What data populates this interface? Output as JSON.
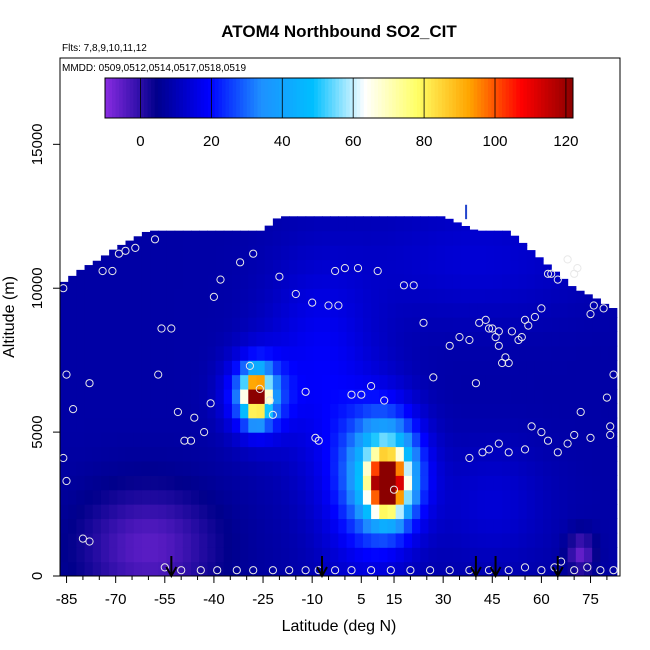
{
  "chart_data": {
    "type": "heatmap",
    "title": "ATOM4 Northbound SO2_CIT",
    "flights_label": "Flts: 7,8,9,10,11,12",
    "mmdd_label": "MMDD: 0509,0512,0514,0517,0518,0519",
    "xlabel": "Latitude (deg N)",
    "ylabel": "Altitude (m)",
    "xlim": [
      -87,
      84
    ],
    "ylim": [
      0,
      18000
    ],
    "x_ticks": [
      -85,
      -70,
      -55,
      -40,
      -25,
      -10,
      5,
      15,
      30,
      45,
      60,
      75
    ],
    "y_ticks": [
      0,
      5000,
      10000,
      15000
    ],
    "colorbar": {
      "range": [
        -10,
        122
      ],
      "ticks": [
        0,
        20,
        40,
        60,
        80,
        100,
        120
      ],
      "colors": [
        "#8a2be2",
        "#00008b",
        "#0000ff",
        "#1e90ff",
        "#00bfff",
        "#ffffff",
        "#ffff66",
        "#ffa500",
        "#ff0000",
        "#8b0000"
      ]
    },
    "data_ceiling": [
      [
        -86,
        10200
      ],
      [
        -80,
        10700
      ],
      [
        -75,
        11000
      ],
      [
        -70,
        11400
      ],
      [
        -60,
        12000
      ],
      [
        -40,
        12000
      ],
      [
        -25,
        12000
      ],
      [
        -20,
        12500
      ],
      [
        30,
        12500
      ],
      [
        40,
        12000
      ],
      [
        50,
        12000
      ],
      [
        55,
        11500
      ],
      [
        60,
        11000
      ],
      [
        65,
        10500
      ],
      [
        70,
        10000
      ],
      [
        76,
        9700
      ],
      [
        80,
        9400
      ],
      [
        82,
        9300
      ]
    ],
    "background_level": 8,
    "plumes": [
      {
        "lat": 13,
        "alt": 3200,
        "sx": 3.5,
        "sy": 650,
        "value": 108
      },
      {
        "lat": 13,
        "alt": 3600,
        "sx": 7,
        "sy": 1300,
        "value": 55
      },
      {
        "lat": 6,
        "alt": 3000,
        "sx": 10,
        "sy": 2200,
        "value": 22
      },
      {
        "lat": -8,
        "alt": 7500,
        "sx": 12,
        "sy": 2500,
        "value": 18
      },
      {
        "lat": -27,
        "alt": 6300,
        "sx": 2.5,
        "sy": 500,
        "value": 100
      },
      {
        "lat": -27,
        "alt": 6300,
        "sx": 6,
        "sy": 900,
        "value": 40
      },
      {
        "lat": 45,
        "alt": 2500,
        "sx": 12,
        "sy": 1500,
        "value": 14
      },
      {
        "lat": 72,
        "alt": 800,
        "sx": 3,
        "sy": 500,
        "value": -6
      },
      {
        "lat": -60,
        "alt": 1000,
        "sx": 15,
        "sy": 1500,
        "value": -5
      },
      {
        "lat": 40,
        "alt": 11000,
        "sx": 25,
        "sy": 1500,
        "value": 14
      }
    ],
    "observation_points": [
      [
        -86,
        10000
      ],
      [
        -85,
        7000
      ],
      [
        -83,
        5800
      ],
      [
        -78,
        6700
      ],
      [
        -74,
        10600
      ],
      [
        -71,
        10600
      ],
      [
        -69,
        11200
      ],
      [
        -67,
        11300
      ],
      [
        -64,
        11400
      ],
      [
        -58,
        11700
      ],
      [
        -57,
        7000
      ],
      [
        -56,
        8600
      ],
      [
        -53,
        8600
      ],
      [
        -51,
        5700
      ],
      [
        -49,
        4700
      ],
      [
        -47,
        4700
      ],
      [
        -46,
        5500
      ],
      [
        -43,
        5000
      ],
      [
        -41,
        6000
      ],
      [
        -40,
        9700
      ],
      [
        -38,
        10300
      ],
      [
        -32,
        10900
      ],
      [
        -28,
        11200
      ],
      [
        -29,
        7300
      ],
      [
        -26,
        6500
      ],
      [
        -23,
        6100
      ],
      [
        -22,
        5600
      ],
      [
        -20,
        10400
      ],
      [
        -15,
        9800
      ],
      [
        -12,
        6400
      ],
      [
        -10,
        9500
      ],
      [
        -9,
        4800
      ],
      [
        -8,
        4700
      ],
      [
        -5,
        9400
      ],
      [
        -3,
        10600
      ],
      [
        -2,
        9400
      ],
      [
        0,
        10700
      ],
      [
        2,
        6300
      ],
      [
        4,
        10700
      ],
      [
        5,
        6300
      ],
      [
        8,
        6600
      ],
      [
        10,
        10600
      ],
      [
        12,
        6100
      ],
      [
        15,
        3000
      ],
      [
        18,
        10100
      ],
      [
        21,
        10100
      ],
      [
        24,
        8800
      ],
      [
        27,
        6900
      ],
      [
        32,
        8000
      ],
      [
        35,
        8300
      ],
      [
        38,
        8200
      ],
      [
        40,
        6700
      ],
      [
        41,
        8800
      ],
      [
        43,
        8900
      ],
      [
        44,
        8600
      ],
      [
        45,
        8600
      ],
      [
        46,
        8300
      ],
      [
        47,
        8500
      ],
      [
        47,
        8000
      ],
      [
        48,
        7400
      ],
      [
        49,
        7600
      ],
      [
        50,
        7400
      ],
      [
        51,
        8500
      ],
      [
        53,
        8200
      ],
      [
        54,
        8300
      ],
      [
        55,
        8900
      ],
      [
        56,
        8700
      ],
      [
        58,
        9000
      ],
      [
        60,
        9300
      ],
      [
        62,
        10500
      ],
      [
        63,
        10500
      ],
      [
        65,
        10300
      ],
      [
        68,
        11000
      ],
      [
        70,
        10500
      ],
      [
        71,
        10700
      ],
      [
        75,
        9100
      ],
      [
        76,
        9400
      ],
      [
        79,
        9300
      ],
      [
        81,
        5200
      ],
      [
        81,
        4900
      ],
      [
        82,
        7000
      ],
      [
        80,
        6200
      ],
      [
        75,
        4800
      ],
      [
        72,
        5700
      ],
      [
        70,
        4900
      ],
      [
        68,
        4600
      ],
      [
        65,
        4300
      ],
      [
        62,
        4700
      ],
      [
        60,
        5000
      ],
      [
        57,
        5200
      ],
      [
        55,
        4400
      ],
      [
        50,
        4300
      ],
      [
        47,
        4600
      ],
      [
        44,
        4400
      ],
      [
        42,
        4300
      ],
      [
        38,
        4100
      ],
      [
        -86,
        4100
      ],
      [
        -85,
        3300
      ],
      [
        -80,
        1300
      ],
      [
        -78,
        1200
      ],
      [
        -55,
        300
      ],
      [
        -50,
        200
      ],
      [
        -44,
        200
      ],
      [
        -39,
        200
      ],
      [
        -33,
        200
      ],
      [
        -28,
        200
      ],
      [
        -22,
        200
      ],
      [
        -17,
        200
      ],
      [
        -12,
        200
      ],
      [
        -8,
        200
      ],
      [
        -3,
        200
      ],
      [
        2,
        200
      ],
      [
        8,
        200
      ],
      [
        14,
        200
      ],
      [
        20,
        200
      ],
      [
        26,
        200
      ],
      [
        32,
        200
      ],
      [
        38,
        200
      ],
      [
        44,
        200
      ],
      [
        50,
        200
      ],
      [
        55,
        300
      ],
      [
        60,
        200
      ],
      [
        64,
        300
      ],
      [
        66,
        500
      ],
      [
        70,
        200
      ],
      [
        74,
        300
      ],
      [
        78,
        200
      ],
      [
        82,
        200
      ]
    ],
    "markers": {
      "flight_turnaround_lats": [
        -53,
        -7,
        40,
        46,
        65
      ],
      "top_tick_lat": 37
    }
  }
}
